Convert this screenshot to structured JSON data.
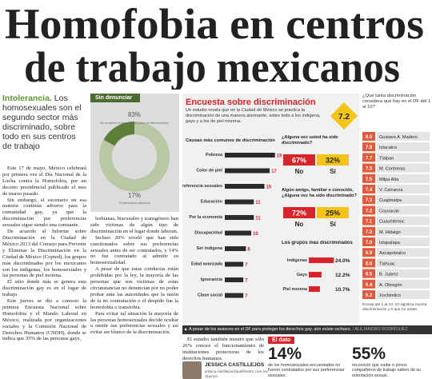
{
  "headline": [
    "Homofobia en centros",
    "de trabajo mexicanos"
  ],
  "lede": {
    "kicker": "Intolerancia.",
    "text": "Los homosexuales son el segundo sector más discriminado, sobre todo en sus centros de trabajo"
  },
  "body": {
    "col1": [
      "Este 17 de mayo, México celebrará por primera vez el Día Nacional de la Lucha contra la Homofobia, por un decreto presidencial publicado el mes de marzo pasado.",
      "Sin embargo, el escenario en esa materia continúa adverso para la comunidad gay, ya que la discriminación por preferencias sexuales sigue siendo una constante.",
      "De acuerdo al Informe sobre Discriminación en la Ciudad de México 2013 del Consejo para Prevenir y Eliminar la Discriminación en la Ciudad de México (Copred), los grupos más discriminados por los mexicanos son los indígenas, los homosexuales y las personas de piel morena.",
      "El sitio donde más se genera esta discriminación gay es en el lugar de trabajo.",
      "Este jueves se dio a conocer la primera Encuesta Nacional sobre Homofobia y el Mundo Laboral en México, realizada por organizaciones sociales y la Comisión Nacional de Derechos Humanos (CNDH), donde se indica que 35% de las personas gays,"
    ],
    "col2": [
      "lesbianas, bisexuales y transgénero han sido víctimas de algún tipo de discriminación en el lugar donde laboran.",
      "Incluso 20% reveló que han sido cuestionados sobre sus preferencias sexuales antes de ser contratados, y 14% no fue contratado al admitir su homosexualidad.",
      "A pesar de que estas conductas están prohibidas por la ley, la mayoría de las personas que son víctimas de estas circunstancias no denuncian por no poder probar ante las autoridades que la razón de la no contratación o el despido fue la homofobia o transfobia.",
      "Para evitar tal situación la mayoría de las personas homosexuales decide ocultar u omitir sus preferencias sexuales y así evitar ser blanco de la discriminación."
    ],
    "col3": [
      "El estudio también mostró que sólo 26% conoce el funcionamiento de instituciones protectoras de los derechos humanos."
    ]
  },
  "donut": {
    "title": "Sin denunciar",
    "values": [
      83,
      17
    ],
    "value_labels": [
      "83%",
      "17%"
    ],
    "texts": [
      "No acudieron a denunciar los actos de discriminación",
      "Si presentaron denuncia"
    ],
    "colors": [
      "#b9c7a4",
      "#5d7f3a"
    ]
  },
  "survey": {
    "title": "Encuesta sobre discriminación",
    "badge": "7.2",
    "subtitle": "Un estudio revela que en la Ciudad de México se practica la discriminación de una manera alarmante, sobre todo a los indígena, gays y a los de piel morena.",
    "causes": {
      "title": "Causas más comunes de discriminación",
      "categories": [
        "Pobreza",
        "Color de piel",
        "Preferencia sexuales",
        "Educación",
        "Por la economía",
        "Discapacidad",
        "Ser indígena",
        "Edad avanzada",
        "Ignorancia",
        "Clase social"
      ],
      "values": [
        19,
        17,
        15,
        11,
        11,
        10,
        8,
        7,
        7,
        7
      ],
      "color": "#2b2b2b"
    },
    "questions": [
      {
        "text": "¿Alguna vez usted ha sido discriminado?",
        "values": [
          67,
          32
        ],
        "value_labels": [
          "67%",
          "32%"
        ],
        "answers": [
          "No",
          "Sí"
        ]
      },
      {
        "text": "Algún amigo, familiar o conocido, ¿Alguna vez ha sido discriminado?",
        "values": [
          72,
          25
        ],
        "value_labels": [
          "72%",
          "25%"
        ],
        "answers": [
          "No",
          "Sí"
        ]
      }
    ],
    "groups": {
      "title": "Los grupos más discriminados",
      "categories": [
        "Indígenas",
        "Gays",
        "Piel morena"
      ],
      "values": [
        24.0,
        12.2,
        10.7
      ],
      "value_labels": [
        "24.0%",
        "12.2%",
        "10.7%"
      ],
      "color": "#d8232a"
    }
  },
  "ranking": {
    "question": "¿Qué tanta discriminación considera que hay en el DF del 1 al 10?",
    "names": [
      "Gustavo A. Madero",
      "Iztacalco",
      "Tlalpan",
      "M. Contreras",
      "Milpa Alta",
      "V. Carranza",
      "Cuajimalpa",
      "Coyoacán",
      "Cuauhtémoc",
      "M. Hidalgo",
      "Iztapalapa",
      "Azcapotzalco",
      "Tláhuac",
      "B. Juárez",
      "A. Obregón",
      "Xochimilco"
    ],
    "values": [
      8.0,
      7.8,
      7.7,
      7.5,
      7.5,
      7.4,
      7.3,
      7.2,
      7.1,
      7.0,
      7.0,
      6.9,
      6.6,
      6.5,
      6.4,
      6.2
    ],
    "value_labels": [
      "8.0",
      "7.8",
      "7.7",
      "7.5",
      "7.5",
      "7.4",
      "7.3",
      "7.2",
      "7.1",
      "7.0",
      "7.0",
      "6.9",
      "6.6",
      "6.5",
      "6.4",
      "6.2"
    ],
    "note": "Escala del 1 al 10, 10 significa mucha discriminación y 0 que no existe."
  },
  "caption": {
    "text": "A pesar de los avances en el DF para proteger los derechos gay, aún existe rechazo.",
    "credit": "/ ALEJANDRO RODRÍGUEZ"
  },
  "byline": {
    "name": "JESSICA CASTILLEJOS",
    "email": "jessica.castillejos@publimetro.com.mx",
    "handle": "@jenyci"
  },
  "dato": {
    "label": "El dato",
    "items": [
      {
        "value": 14,
        "label": "14%",
        "text": "de los homosexuales encuestados no fueron contratados por sus preferencias sexuales."
      },
      {
        "value": 55,
        "label": "55%",
        "text": "reconoció que nadie o pocos compañeros de trabajo saben de su orientación sexual."
      }
    ]
  }
}
